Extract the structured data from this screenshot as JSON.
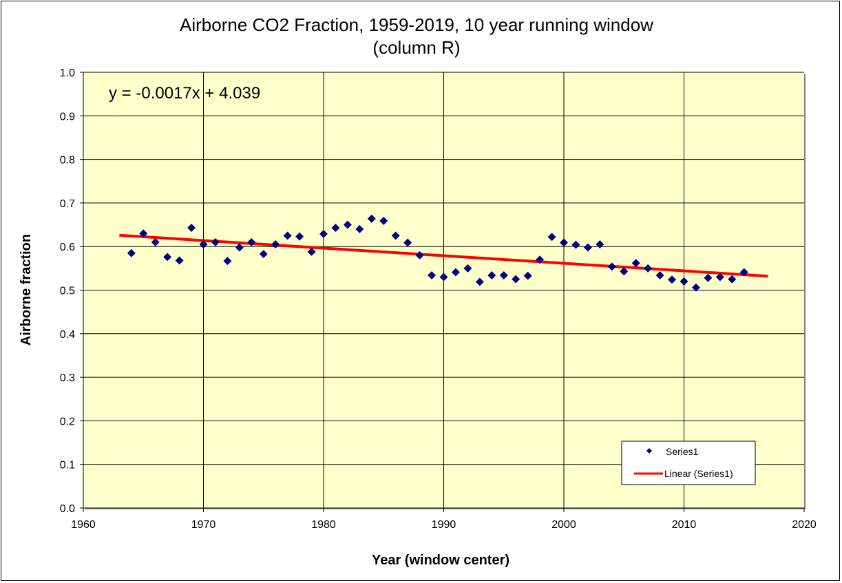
{
  "chart_data": {
    "type": "scatter",
    "title": "Airborne CO2 Fraction, 1959-2019, 10 year running window",
    "subtitle": "(column R)",
    "xlabel": "Year (window center)",
    "ylabel": "Airborne fraction",
    "xlim": [
      1960,
      2020
    ],
    "ylim": [
      0.0,
      1.0
    ],
    "x_ticks": [
      1960,
      1970,
      1980,
      1990,
      2000,
      2010,
      2020
    ],
    "x_tick_labels": [
      "1960",
      "1970",
      "1980",
      "1990",
      "2000",
      "2010",
      "2020"
    ],
    "y_ticks": [
      0.0,
      0.1,
      0.2,
      0.3,
      0.4,
      0.5,
      0.6,
      0.7,
      0.8,
      0.9,
      1.0
    ],
    "y_tick_labels": [
      "0.0",
      "0.1",
      "0.2",
      "0.3",
      "0.4",
      "0.5",
      "0.6",
      "0.7",
      "0.8",
      "0.9",
      "1.0"
    ],
    "grid": true,
    "plot_background": "#ffffcc",
    "series": [
      {
        "name": "Series1",
        "marker": "diamond",
        "color": "#000080",
        "x": [
          1964,
          1965,
          1966,
          1967,
          1968,
          1969,
          1970,
          1971,
          1972,
          1973,
          1974,
          1975,
          1976,
          1977,
          1978,
          1979,
          1980,
          1981,
          1982,
          1983,
          1984,
          1985,
          1986,
          1987,
          1988,
          1989,
          1990,
          1991,
          1992,
          1993,
          1994,
          1995,
          1996,
          1997,
          1998,
          1999,
          2000,
          2001,
          2002,
          2003,
          2004,
          2005,
          2006,
          2007,
          2008,
          2009,
          2010,
          2011,
          2012,
          2013,
          2014,
          2015
        ],
        "y": [
          0.585,
          0.63,
          0.61,
          0.576,
          0.568,
          0.643,
          0.605,
          0.61,
          0.567,
          0.598,
          0.61,
          0.583,
          0.605,
          0.625,
          0.623,
          0.588,
          0.629,
          0.643,
          0.65,
          0.64,
          0.664,
          0.659,
          0.625,
          0.609,
          0.58,
          0.534,
          0.53,
          0.541,
          0.55,
          0.519,
          0.534,
          0.534,
          0.525,
          0.533,
          0.57,
          0.622,
          0.609,
          0.604,
          0.598,
          0.605,
          0.554,
          0.543,
          0.562,
          0.55,
          0.534,
          0.524,
          0.52,
          0.506,
          0.528,
          0.53,
          0.525,
          0.541
        ]
      }
    ],
    "trendline": {
      "name": "Linear (Series1)",
      "type": "linear",
      "color": "#ff0000",
      "x_range": [
        1963,
        2017
      ],
      "y_range": [
        0.626,
        0.532
      ],
      "equation": "y = -0.0017x + 4.039"
    },
    "legend": {
      "placement": "bottom-right",
      "entries": [
        "Series1",
        "Linear (Series1)"
      ]
    }
  }
}
